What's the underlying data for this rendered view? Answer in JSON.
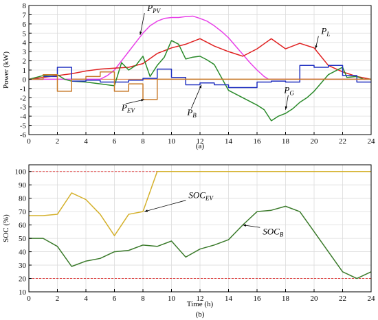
{
  "chart_data": [
    {
      "type": "line",
      "caption": "(a)",
      "ylabel": "Power (kW)",
      "xlim": [
        0,
        24
      ],
      "ylim": [
        -6,
        8
      ],
      "xticks": [
        0,
        2,
        4,
        6,
        8,
        10,
        12,
        14,
        16,
        18,
        20,
        22,
        24
      ],
      "yticks": [
        -6,
        -5,
        -4,
        -3,
        -2,
        -1,
        0,
        1,
        2,
        3,
        4,
        5,
        6,
        7,
        8
      ],
      "grid": true,
      "reference_lines": [
        {
          "y": 0,
          "color": "#e07b39"
        }
      ],
      "series": [
        {
          "id": "pv",
          "color": "#e83fe8",
          "points": [
            [
              0,
              0
            ],
            [
              5,
              0
            ],
            [
              5.5,
              0.4
            ],
            [
              6,
              1
            ],
            [
              6.5,
              2
            ],
            [
              7,
              3
            ],
            [
              7.5,
              4
            ],
            [
              8,
              5
            ],
            [
              8.5,
              5.8
            ],
            [
              9,
              6.3
            ],
            [
              9.5,
              6.6
            ],
            [
              10,
              6.7
            ],
            [
              10.5,
              6.7
            ],
            [
              11,
              6.8
            ],
            [
              11.5,
              6.85
            ],
            [
              12,
              6.6
            ],
            [
              12.5,
              6.3
            ],
            [
              13,
              5.8
            ],
            [
              13.5,
              5.2
            ],
            [
              14,
              4.5
            ],
            [
              14.5,
              3.6
            ],
            [
              15,
              2.7
            ],
            [
              15.5,
              1.8
            ],
            [
              16,
              1
            ],
            [
              16.5,
              0.3
            ],
            [
              16.8,
              0
            ],
            [
              24,
              0
            ]
          ]
        },
        {
          "id": "load",
          "color": "#e02020",
          "points": [
            [
              0,
              0
            ],
            [
              1,
              0.2
            ],
            [
              2,
              0.4
            ],
            [
              3,
              0.6
            ],
            [
              4,
              0.9
            ],
            [
              5,
              1.1
            ],
            [
              6,
              1.2
            ],
            [
              7,
              1.3
            ],
            [
              8,
              1.7
            ],
            [
              9,
              2.8
            ],
            [
              10,
              3.4
            ],
            [
              11,
              3.8
            ],
            [
              12,
              4.4
            ],
            [
              13,
              3.6
            ],
            [
              14,
              3
            ],
            [
              15,
              2.5
            ],
            [
              16,
              3.3
            ],
            [
              17,
              4.4
            ],
            [
              18,
              3.3
            ],
            [
              19,
              3.9
            ],
            [
              20,
              3.4
            ],
            [
              21,
              1.5
            ],
            [
              22,
              0.8
            ],
            [
              23,
              0.3
            ],
            [
              24,
              0
            ]
          ]
        },
        {
          "id": "grid",
          "color": "#2a8a2a",
          "points": [
            [
              0,
              0
            ],
            [
              1,
              0.4
            ],
            [
              2,
              0.5
            ],
            [
              2.5,
              0
            ],
            [
              3,
              -0.2
            ],
            [
              4,
              -0.3
            ],
            [
              5,
              -0.5
            ],
            [
              6,
              -0.7
            ],
            [
              6.5,
              1.8
            ],
            [
              7,
              1
            ],
            [
              7.5,
              1.5
            ],
            [
              8,
              2.5
            ],
            [
              8.5,
              0.3
            ],
            [
              9,
              1.5
            ],
            [
              9.5,
              2.4
            ],
            [
              10,
              4.2
            ],
            [
              10.5,
              3.8
            ],
            [
              11,
              2.2
            ],
            [
              11.5,
              2.4
            ],
            [
              12,
              2.5
            ],
            [
              12.5,
              2.1
            ],
            [
              13,
              1.6
            ],
            [
              14,
              -1.2
            ],
            [
              15,
              -2
            ],
            [
              16,
              -2.8
            ],
            [
              16.5,
              -3.3
            ],
            [
              17,
              -4.5
            ],
            [
              17.5,
              -4
            ],
            [
              18,
              -3.7
            ],
            [
              18.5,
              -3.2
            ],
            [
              19,
              -2.5
            ],
            [
              19.5,
              -2
            ],
            [
              20,
              -1.3
            ],
            [
              21,
              0.5
            ],
            [
              22,
              1.3
            ],
            [
              22.3,
              0.2
            ],
            [
              23,
              0.3
            ],
            [
              23.5,
              0
            ],
            [
              24,
              0
            ]
          ]
        },
        {
          "id": "battery",
          "color": "#2030c0",
          "step": true,
          "points": [
            [
              0,
              0
            ],
            [
              1,
              0
            ],
            [
              1,
              0.3
            ],
            [
              2,
              0.3
            ],
            [
              2,
              1.3
            ],
            [
              3,
              1.3
            ],
            [
              3,
              -0.2
            ],
            [
              4,
              -0.2
            ],
            [
              4,
              -0.1
            ],
            [
              5,
              -0.1
            ],
            [
              5,
              -0.3
            ],
            [
              6,
              -0.3
            ],
            [
              6,
              -0.3
            ],
            [
              7,
              -0.3
            ],
            [
              7,
              -0.1
            ],
            [
              8,
              -0.1
            ],
            [
              8,
              0.1
            ],
            [
              9,
              0.1
            ],
            [
              9,
              1.1
            ],
            [
              10,
              1.1
            ],
            [
              10,
              0.2
            ],
            [
              11,
              0.2
            ],
            [
              11,
              -0.6
            ],
            [
              12,
              -0.6
            ],
            [
              12,
              -0.4
            ],
            [
              13,
              -0.4
            ],
            [
              13,
              -0.6
            ],
            [
              14,
              -0.6
            ],
            [
              14,
              -0.9
            ],
            [
              15,
              -0.9
            ],
            [
              15,
              -0.9
            ],
            [
              16,
              -0.9
            ],
            [
              16,
              -0.3
            ],
            [
              17,
              -0.3
            ],
            [
              17,
              -0.2
            ],
            [
              18,
              -0.2
            ],
            [
              18,
              -0.3
            ],
            [
              19,
              -0.3
            ],
            [
              19,
              1.5
            ],
            [
              20,
              1.5
            ],
            [
              20,
              1.3
            ],
            [
              21,
              1.3
            ],
            [
              21,
              1.5
            ],
            [
              22,
              1.5
            ],
            [
              22,
              0.4
            ],
            [
              23,
              0.4
            ],
            [
              23,
              -0.3
            ],
            [
              24,
              -0.3
            ]
          ]
        },
        {
          "id": "ev",
          "color": "#c87a2a",
          "step": true,
          "points": [
            [
              0,
              0
            ],
            [
              1,
              0
            ],
            [
              1,
              0.5
            ],
            [
              2,
              0.5
            ],
            [
              2,
              -1.3
            ],
            [
              3,
              -1.3
            ],
            [
              3,
              0
            ],
            [
              4,
              0
            ],
            [
              4,
              0.3
            ],
            [
              5,
              0.3
            ],
            [
              5,
              0.8
            ],
            [
              6,
              0.8
            ],
            [
              6,
              -1.3
            ],
            [
              7,
              -1.3
            ],
            [
              7,
              -0.5
            ],
            [
              8,
              -0.5
            ],
            [
              8,
              -2.2
            ],
            [
              9,
              -2.2
            ],
            [
              9,
              0
            ],
            [
              24,
              0
            ]
          ]
        }
      ],
      "annotations": [
        {
          "base": "P",
          "sub": "PV",
          "text_at": [
            8.3,
            7.4
          ],
          "arrow_to": [
            7.8,
            4.8
          ]
        },
        {
          "base": "P",
          "sub": "L",
          "text_at": [
            20.5,
            4.9
          ],
          "arrow_to": [
            20.1,
            3.3
          ]
        },
        {
          "base": "P",
          "sub": "EV",
          "text_at": [
            6.5,
            -3.4
          ],
          "arrow_to": [
            8.1,
            -2.2
          ]
        },
        {
          "base": "P",
          "sub": "B",
          "text_at": [
            11.1,
            -3.9
          ],
          "arrow_to": [
            12.1,
            -0.6
          ]
        },
        {
          "base": "P",
          "sub": "G",
          "text_at": [
            17.9,
            -1.5
          ],
          "arrow_to": [
            18,
            -3.3
          ]
        }
      ]
    },
    {
      "type": "line",
      "caption": "(b)",
      "xlabel": "Time (h)",
      "ylabel": "SOC (%)",
      "xlim": [
        0,
        24
      ],
      "ylim": [
        10,
        105
      ],
      "xticks": [
        0,
        2,
        4,
        6,
        8,
        10,
        12,
        14,
        16,
        18,
        20,
        22,
        24
      ],
      "yticks": [
        10,
        20,
        30,
        40,
        50,
        60,
        70,
        80,
        90,
        100
      ],
      "grid": true,
      "reference_lines": [
        {
          "y": 100,
          "color": "#e04040",
          "dashed": true
        },
        {
          "y": 20,
          "color": "#e04040",
          "dashed": true
        }
      ],
      "series": [
        {
          "id": "soc_ev",
          "color": "#d4b02a",
          "points": [
            [
              0,
              67
            ],
            [
              1,
              67
            ],
            [
              2,
              68
            ],
            [
              3,
              84
            ],
            [
              4,
              79
            ],
            [
              5,
              68
            ],
            [
              6,
              52
            ],
            [
              7,
              68
            ],
            [
              8,
              70
            ],
            [
              9,
              100
            ],
            [
              10,
              100
            ],
            [
              10,
              100
            ],
            [
              11,
              100
            ],
            [
              12,
              100
            ],
            [
              13,
              100
            ],
            [
              14,
              100
            ],
            [
              15,
              100
            ],
            [
              16,
              100
            ],
            [
              17,
              100
            ],
            [
              18,
              100
            ],
            [
              19,
              100
            ],
            [
              20,
              100
            ],
            [
              21,
              100
            ],
            [
              22,
              100
            ],
            [
              23,
              100
            ],
            [
              24,
              100
            ]
          ]
        },
        {
          "id": "soc_b",
          "color": "#3a7a2a",
          "points": [
            [
              0,
              50
            ],
            [
              1,
              50
            ],
            [
              2,
              44
            ],
            [
              3,
              29
            ],
            [
              4,
              33
            ],
            [
              5,
              35
            ],
            [
              6,
              40
            ],
            [
              7,
              41
            ],
            [
              8,
              45
            ],
            [
              9,
              44
            ],
            [
              10,
              48
            ],
            [
              11,
              36
            ],
            [
              12,
              42
            ],
            [
              13,
              45
            ],
            [
              14,
              49
            ],
            [
              15,
              60
            ],
            [
              16,
              70
            ],
            [
              17,
              71
            ],
            [
              18,
              74
            ],
            [
              19,
              70
            ],
            [
              20,
              55
            ],
            [
              21,
              40
            ],
            [
              22,
              25
            ],
            [
              23,
              20
            ],
            [
              24,
              25
            ]
          ]
        }
      ],
      "annotations": [
        {
          "base": "SOC",
          "sub": "EV",
          "text_at": [
            11.2,
            80
          ],
          "arrow_to": [
            8.1,
            70
          ]
        },
        {
          "base": "SOC",
          "sub": "B",
          "text_at": [
            16.4,
            53
          ],
          "arrow_to": [
            15,
            60
          ]
        }
      ]
    }
  ]
}
